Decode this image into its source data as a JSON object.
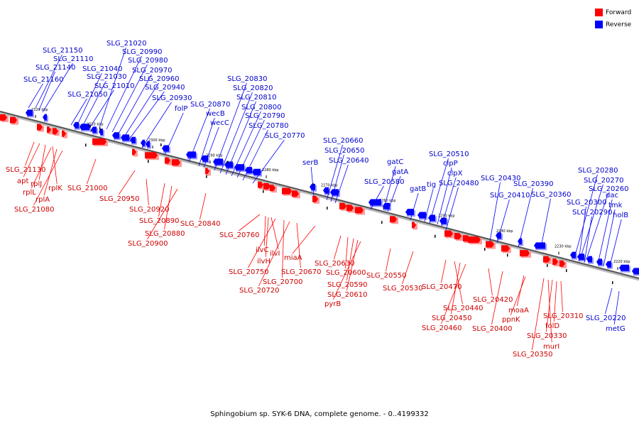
{
  "caption": "Sphingobium sp. SYK-6 DNA, complete genome. - 0..4199332",
  "legend": [
    {
      "label": "Forward",
      "color": "#ff0000"
    },
    {
      "label": "Reverse",
      "color": "#0000ff"
    }
  ],
  "colors": {
    "forward": "#ff0000",
    "reverse": "#0000ff",
    "forward_label": "#cc0000",
    "reverse_label": "#0000cc",
    "backbone": "#555555"
  },
  "ticks": [
    "2320 kbp",
    "2310 kbp",
    "2300 kbp",
    "2290 kbp",
    "2280 kbp",
    "2270 kbp",
    "2260 kbp",
    "2250 kbp",
    "2240 kbp",
    "2230 kbp",
    "2220 kbp"
  ],
  "reverse_labels": [
    "SLG_21150",
    "SLG_21110",
    "SLG_21140",
    "SLG_21160",
    "SLG_21050",
    "SLG_21040",
    "SLG_21030",
    "SLG_21010",
    "SLG_21020",
    "SLG_20990",
    "SLG_20980",
    "SLG_20970",
    "SLG_20960",
    "SLG_20940",
    "SLG_20930",
    "folP",
    "SLG_20870",
    "wecB",
    "wecC",
    "SLG_20830",
    "SLG_20820",
    "SLG_20810",
    "SLG_20800",
    "SLG_20790",
    "SLG_20780",
    "SLG_20770",
    "serB",
    "SLG_20660",
    "SLG_20650",
    "SLG_20640",
    "SLG_20580",
    "gatC",
    "gatA",
    "gatB",
    "tig",
    "SLG_20510",
    "clpP",
    "clpX",
    "SLG_20480",
    "SLG_20430",
    "SLG_20410",
    "SLG_20390",
    "SLG_20360",
    "SLG_20280",
    "SLG_20270",
    "SLG_20260",
    "SLG_20300",
    "SLG_20290",
    "dac",
    "tmk",
    "holB",
    "SLG_20220",
    "metG"
  ],
  "forward_labels": [
    "SLG_21130",
    "apt",
    "rplJ",
    "rplK",
    "rplL",
    "rplA",
    "SLG_21080",
    "SLG_21000",
    "SLG_20950",
    "SLG_20920",
    "SLG_20890",
    "SLG_20880",
    "SLG_20900",
    "SLG_20840",
    "SLG_20760",
    "ilvC",
    "ilvI",
    "ilvH",
    "SLG_20750",
    "SLG_20700",
    "SLG_20720",
    "SLG_20670",
    "miaA",
    "SLG_20630",
    "SLG_20600",
    "SLG_20590",
    "SLG_20610",
    "pyrB",
    "SLG_20550",
    "SLG_20530",
    "SLG_20470",
    "SLG_20440",
    "SLG_20450",
    "SLG_20460",
    "SLG_20420",
    "SLG_20400",
    "moaA",
    "ppnK",
    "SLG_20310",
    "folD",
    "SLG_20330",
    "murI",
    "SLG_20350"
  ]
}
